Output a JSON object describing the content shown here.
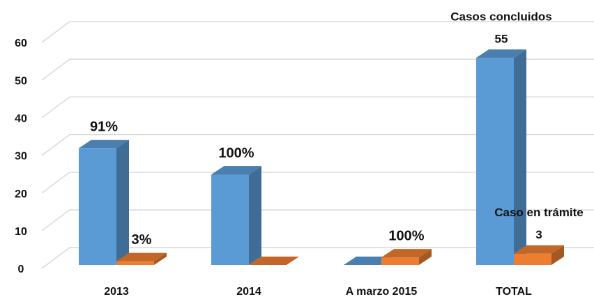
{
  "chart_data": {
    "type": "bar3d",
    "categories": [
      "2013",
      "2014",
      "A marzo 2015",
      "TOTAL"
    ],
    "series": [
      {
        "name": "Casos concluidos",
        "color": "#5b9bd5",
        "values": [
          31,
          24,
          0,
          55
        ],
        "annotations": [
          "91%",
          "100%",
          null,
          null
        ],
        "value_labels": [
          null,
          null,
          null,
          "55"
        ]
      },
      {
        "name": "Caso en trámite",
        "color": "#ed7d31",
        "values": [
          1,
          0,
          2,
          3
        ],
        "annotations": [
          "3%",
          null,
          "100%",
          null
        ],
        "value_labels": [
          null,
          null,
          null,
          "3"
        ]
      }
    ],
    "ylim": [
      0,
      60
    ],
    "yticks": [
      0,
      10,
      20,
      30,
      40,
      50,
      60
    ],
    "grid": true
  }
}
